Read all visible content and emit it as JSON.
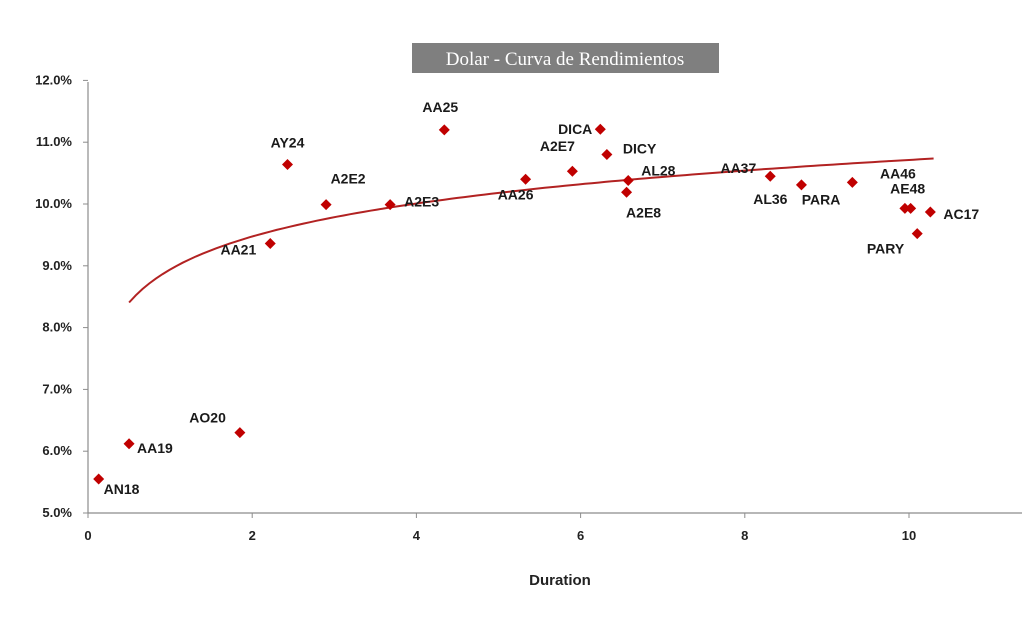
{
  "chart_data": {
    "type": "scatter",
    "title": "Dolar - Curva de Rendimientos",
    "xlabel": "Duration",
    "ylabel": "",
    "xlim": [
      0,
      11.5
    ],
    "ylim": [
      5.0,
      12.0
    ],
    "x_ticks": [
      "0",
      "2",
      "4",
      "6",
      "8",
      "10"
    ],
    "y_ticks": [
      "5.0%",
      "6.0%",
      "7.0%",
      "8.0%",
      "9.0%",
      "10.0%",
      "11.0%",
      "12.0%"
    ],
    "grid": false,
    "marker_color": "#c00000",
    "trendline_color": "#b22222",
    "trendline": {
      "type": "logarithmic",
      "a": 8.94,
      "b": 0.77,
      "x_range": [
        0.5,
        10.3
      ]
    },
    "points": [
      {
        "label": "AN18",
        "x": 0.13,
        "y": 5.55
      },
      {
        "label": "AA19",
        "x": 0.5,
        "y": 6.12
      },
      {
        "label": "AO20",
        "x": 1.85,
        "y": 6.3
      },
      {
        "label": "AA21",
        "x": 2.22,
        "y": 9.36
      },
      {
        "label": "AY24",
        "x": 2.43,
        "y": 10.64
      },
      {
        "label": "A2E2",
        "x": 2.9,
        "y": 9.99
      },
      {
        "label": "A2E3",
        "x": 3.68,
        "y": 9.99
      },
      {
        "label": "AA25",
        "x": 4.34,
        "y": 11.2
      },
      {
        "label": "AA26",
        "x": 5.33,
        "y": 10.4
      },
      {
        "label": "A2E7",
        "x": 5.9,
        "y": 10.53
      },
      {
        "label": "DICA",
        "x": 6.24,
        "y": 11.21
      },
      {
        "label": "DICY",
        "x": 6.32,
        "y": 10.8
      },
      {
        "label": "AL28",
        "x": 6.58,
        "y": 10.38
      },
      {
        "label": "A2E8",
        "x": 6.56,
        "y": 10.19
      },
      {
        "label": "AA37",
        "x": 8.31,
        "y": 10.45
      },
      {
        "label": "AL36",
        "x": 8.69,
        "y": 10.31
      },
      {
        "label": "PARA",
        "x": 9.31,
        "y": 10.35
      },
      {
        "label": "AA46",
        "x": 9.95,
        "y": 9.93
      },
      {
        "label": "AE48",
        "x": 10.02,
        "y": 9.93
      },
      {
        "label": "PARY",
        "x": 10.1,
        "y": 9.52
      },
      {
        "label": "AC17",
        "x": 10.26,
        "y": 9.87
      }
    ]
  }
}
